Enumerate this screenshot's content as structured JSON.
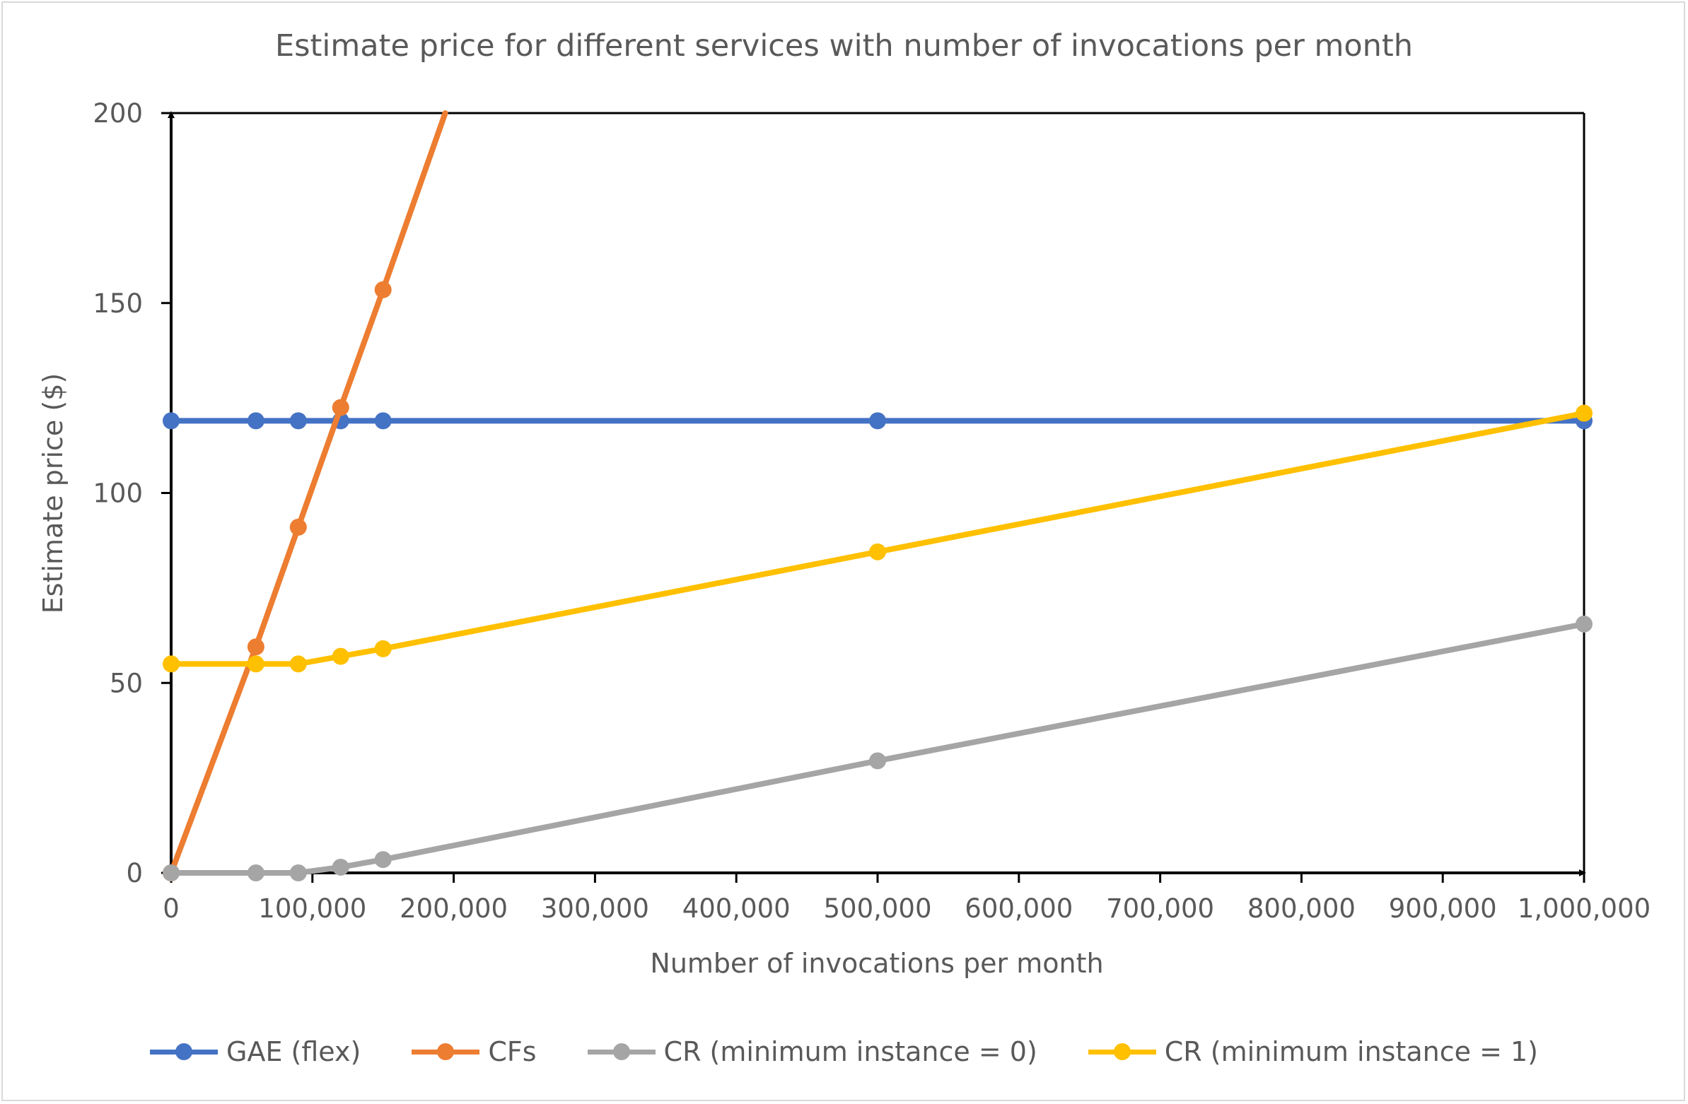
{
  "chart_data": {
    "type": "line",
    "title": "Estimate price for different services with number of invocations per month",
    "xlabel": "Number of invocations per month",
    "ylabel": "Estimate price ($)",
    "xlim": [
      0,
      1000000
    ],
    "ylim": [
      0,
      200
    ],
    "x_ticks": [
      "0",
      "100,000",
      "200,000",
      "300,000",
      "400,000",
      "500,000",
      "600,000",
      "700,000",
      "800,000",
      "900,000",
      "1,000,000"
    ],
    "y_ticks": [
      "0",
      "50",
      "100",
      "150",
      "200"
    ],
    "grid": false,
    "legend_position": "bottom",
    "series": [
      {
        "name": "GAE (flex)",
        "color": "#4472c4",
        "x": [
          0,
          60000,
          90000,
          120000,
          150000,
          500000,
          1000000
        ],
        "y": [
          119,
          119,
          119,
          119,
          119,
          119,
          119
        ]
      },
      {
        "name": "CFs",
        "color": "#ed7d31",
        "x": [
          0,
          60000,
          90000,
          120000,
          150000,
          194000
        ],
        "y": [
          0,
          59.5,
          91,
          122.5,
          153.5,
          200
        ]
      },
      {
        "name": "CR (minimum instance = 0)",
        "color": "#a5a5a5",
        "x": [
          0,
          60000,
          90000,
          120000,
          150000,
          500000,
          1000000
        ],
        "y": [
          0,
          0,
          0,
          1.5,
          3.5,
          29.5,
          65.5
        ]
      },
      {
        "name": "CR (minimum instance = 1)",
        "color": "#ffc000",
        "x": [
          0,
          60000,
          90000,
          120000,
          150000,
          500000,
          1000000
        ],
        "y": [
          55,
          55,
          55,
          57,
          59,
          84.5,
          121
        ]
      }
    ]
  }
}
